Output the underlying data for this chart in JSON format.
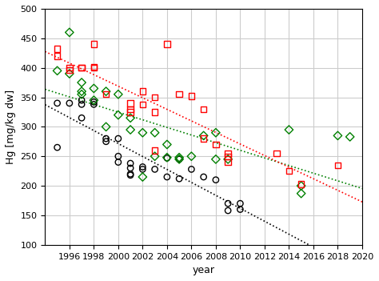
{
  "xlabel": "year",
  "ylabel": "Hg [mg/kg dw]",
  "xlim": [
    1994,
    2020
  ],
  "ylim": [
    100,
    500
  ],
  "xticks": [
    1996,
    1998,
    2000,
    2002,
    2004,
    2006,
    2008,
    2010,
    2012,
    2014,
    2016,
    2018,
    2020
  ],
  "yticks": [
    100,
    150,
    200,
    250,
    300,
    350,
    400,
    450,
    500
  ],
  "background": "#ffffff",
  "grid_color": "#cccccc",
  "black_x": [
    1995,
    1995,
    1996,
    1997,
    1997,
    1997,
    1998,
    1998,
    1999,
    1999,
    2000,
    2000,
    2000,
    2001,
    2001,
    2001,
    2001,
    2002,
    2002,
    2003,
    2004,
    2004,
    2005,
    2005,
    2006,
    2007,
    2008,
    2009,
    2009,
    2010,
    2010
  ],
  "black_y": [
    265,
    340,
    340,
    315,
    338,
    345,
    338,
    342,
    275,
    280,
    240,
    250,
    280,
    218,
    220,
    230,
    238,
    228,
    232,
    228,
    247,
    215,
    212,
    245,
    228,
    215,
    210,
    170,
    158,
    170,
    160
  ],
  "green_x": [
    1995,
    1996,
    1996,
    1997,
    1997,
    1997,
    1998,
    1998,
    1999,
    1999,
    2000,
    2000,
    2001,
    2001,
    2002,
    2002,
    2003,
    2003,
    2004,
    2004,
    2005,
    2005,
    2006,
    2007,
    2008,
    2008,
    2009,
    2014,
    2015,
    2015,
    2018,
    2019
  ],
  "green_y": [
    395,
    390,
    460,
    355,
    360,
    375,
    345,
    365,
    360,
    300,
    320,
    355,
    295,
    315,
    290,
    215,
    250,
    290,
    270,
    248,
    245,
    248,
    250,
    285,
    290,
    245,
    245,
    295,
    200,
    187,
    285,
    283
  ],
  "red_x": [
    1995,
    1995,
    1996,
    1996,
    1997,
    1997,
    1998,
    1998,
    1998,
    1999,
    2001,
    2001,
    2001,
    2002,
    2002,
    2003,
    2003,
    2003,
    2004,
    2005,
    2006,
    2007,
    2007,
    2008,
    2009,
    2009,
    2009,
    2013,
    2014,
    2015,
    2018
  ],
  "red_y": [
    432,
    420,
    400,
    396,
    400,
    400,
    440,
    400,
    402,
    355,
    340,
    325,
    330,
    360,
    338,
    350,
    325,
    260,
    440,
    355,
    352,
    330,
    280,
    270,
    255,
    250,
    240,
    255,
    225,
    203,
    235
  ]
}
